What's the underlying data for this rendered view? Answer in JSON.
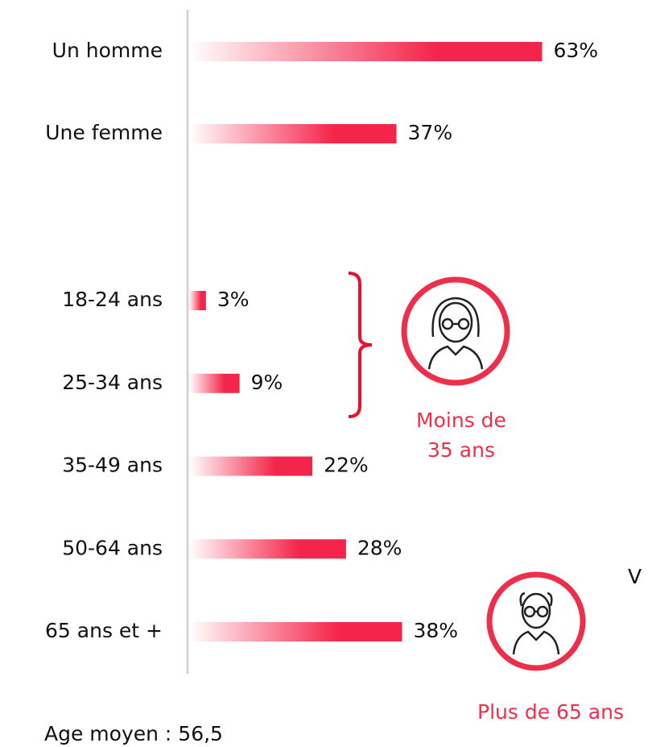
{
  "chart_data": [
    {
      "type": "bar",
      "orientation": "horizontal",
      "color": "#f4254a",
      "categories": [
        "Un homme",
        "Une femme"
      ],
      "values": [
        63,
        37
      ],
      "value_labels": [
        "63%",
        "37%"
      ]
    },
    {
      "type": "bar",
      "orientation": "horizontal",
      "color": "#f4254a",
      "categories": [
        "18-24 ans",
        "25-34 ans",
        "35-49 ans",
        "50-64 ans",
        "65 ans et +"
      ],
      "values": [
        3,
        9,
        22,
        28,
        38
      ],
      "value_labels": [
        "3%",
        "9%",
        "22%",
        "28%",
        "38%"
      ],
      "annotations": {
        "young": [
          "Moins de",
          "35 ans"
        ],
        "old": "Plus de 65 ans",
        "edge": "V",
        "average": "Age moyen : 56,5"
      }
    }
  ]
}
